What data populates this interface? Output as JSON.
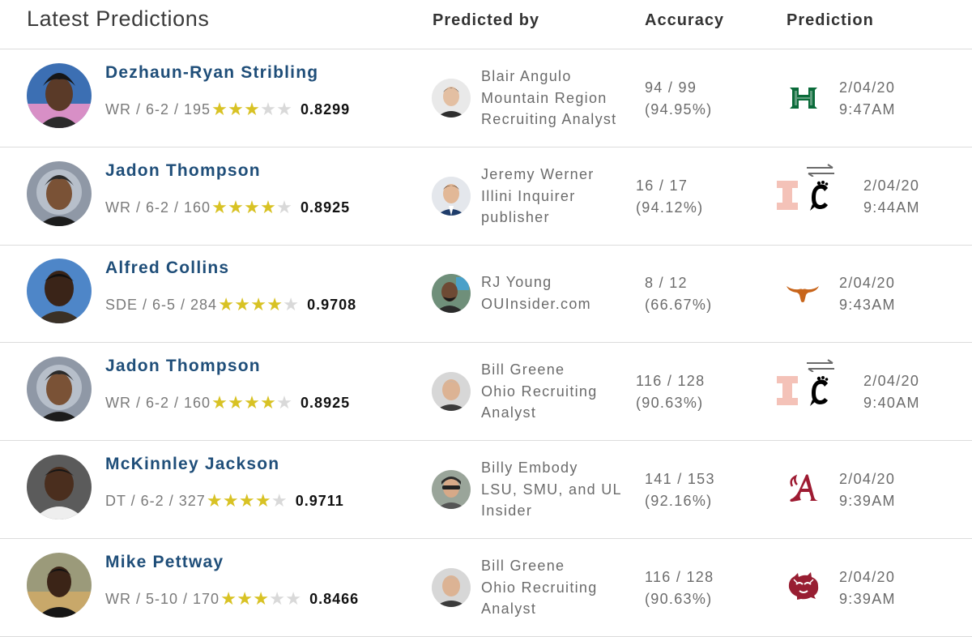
{
  "header": {
    "title": "Latest Predictions",
    "predicted_by": "Predicted by",
    "accuracy": "Accuracy",
    "prediction": "Prediction"
  },
  "rows": [
    {
      "player": "Dezhaun-Ryan Stribling",
      "meta": "WR / 6-2 / 195",
      "stars": 3,
      "rating": "0.8299",
      "analyst": [
        "Blair Angulo",
        "Mountain Region",
        "Recruiting Analyst"
      ],
      "record": "94 / 99",
      "pct": "(94.95%)",
      "school_icon": "hawaii-h-logo",
      "date": "2/04/20",
      "time": "9:47AM"
    },
    {
      "player": "Jadon Thompson",
      "meta": "WR / 6-2 / 160",
      "stars": 4,
      "rating": "0.8925",
      "analyst": [
        "Jeremy Werner",
        "Illini Inquirer",
        "publisher"
      ],
      "record": "16 / 17",
      "pct": "(94.12%)",
      "school_icon": "illinois-to-cincinnati-flip",
      "date": "2/04/20",
      "time": "9:44AM"
    },
    {
      "player": "Alfred Collins",
      "meta": "SDE / 6-5 / 284",
      "stars": 4,
      "rating": "0.9708",
      "analyst": [
        "RJ Young",
        "OUInsider.com"
      ],
      "record": "8 / 12",
      "pct": "(66.67%)",
      "school_icon": "texas-longhorn-logo",
      "date": "2/04/20",
      "time": "9:43AM"
    },
    {
      "player": "Jadon Thompson",
      "meta": "WR / 6-2 / 160",
      "stars": 4,
      "rating": "0.8925",
      "analyst": [
        "Bill Greene",
        "Ohio Recruiting",
        "Analyst"
      ],
      "record": "116 / 128",
      "pct": "(90.63%)",
      "school_icon": "illinois-to-cincinnati-flip",
      "date": "2/04/20",
      "time": "9:40AM"
    },
    {
      "player": "McKinnley Jackson",
      "meta": "DT / 6-2 / 327",
      "stars": 4,
      "rating": "0.9711",
      "analyst": [
        "Billy Embody",
        "LSU, SMU, and UL",
        "Insider"
      ],
      "record": "141 / 153",
      "pct": "(92.16%)",
      "school_icon": "alabama-a-logo",
      "date": "2/04/20",
      "time": "9:39AM"
    },
    {
      "player": "Mike Pettway",
      "meta": "WR / 5-10 / 170",
      "stars": 3,
      "rating": "0.8466",
      "analyst": [
        "Bill Greene",
        "Ohio Recruiting",
        "Analyst"
      ],
      "record": "116 / 128",
      "pct": "(90.63%)",
      "school_icon": "washington-state-cougar-logo",
      "date": "2/04/20",
      "time": "9:39AM"
    }
  ],
  "colors": {
    "player_name": "#1f4e79",
    "star_on": "#d8c224",
    "star_off": "#d9d9d9",
    "hawaii": "#0b6b3a",
    "illinois": "#f4c2b8",
    "cincinnati": "#000000",
    "texas": "#c8651b",
    "alabama": "#9e1b32",
    "wsu": "#981e32"
  }
}
